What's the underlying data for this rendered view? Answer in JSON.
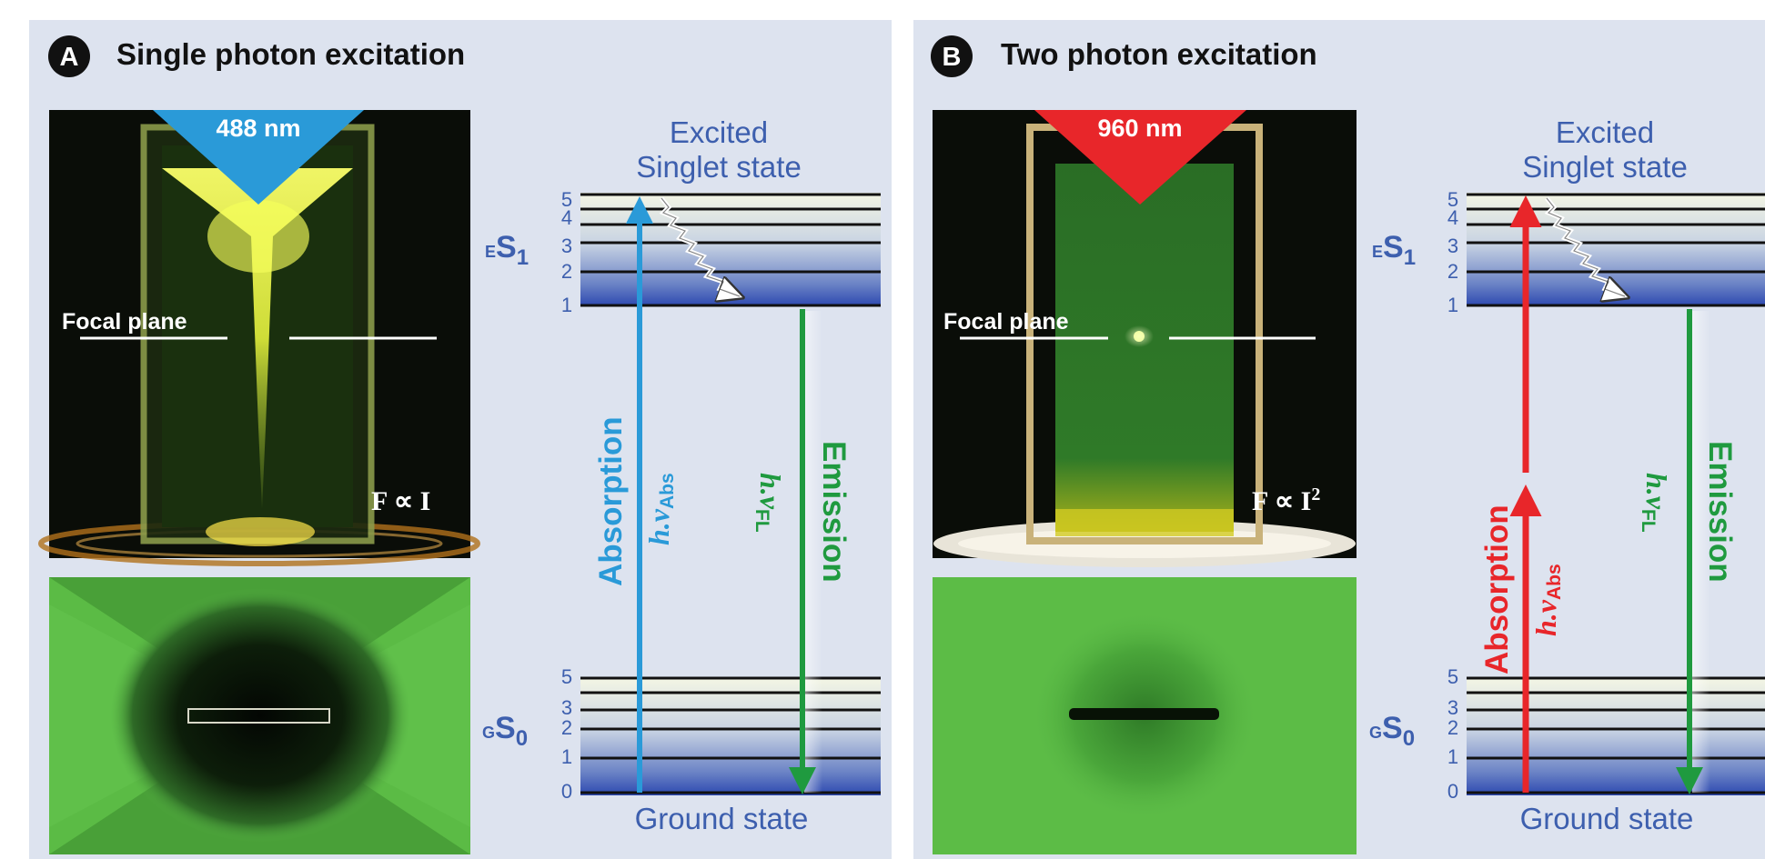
{
  "panel_a": {
    "badge": "A",
    "title": "Single photon excitation",
    "wavelength": "488 nm",
    "focal_plane": "Focal plane",
    "relation_base": "F ∝ I",
    "relation_exp": "",
    "excited_line1": "Excited",
    "excited_line2": "Singlet state",
    "ground_state": "Ground state",
    "s1_prefix": "E",
    "s1_main": "S",
    "s1_sub": "1",
    "s0_prefix": "G",
    "s0_main": "S",
    "s0_sub": "0",
    "excited_levels": [
      "5",
      "4",
      "3",
      "2",
      "1"
    ],
    "ground_levels": [
      "5",
      "3",
      "2",
      "1",
      "0"
    ],
    "absorption": "Absorption",
    "emission": "Emission",
    "hv_abs_main": "h.ν",
    "hv_abs_sub": "Abs",
    "hv_fl_main": "h.ν",
    "hv_fl_sub": "FL",
    "colors": {
      "excitation": "#2a9ad8",
      "emission": "#1f9a3f"
    }
  },
  "panel_b": {
    "badge": "B",
    "title": "Two photon excitation",
    "wavelength": "960 nm",
    "focal_plane": "Focal plane",
    "relation_base": "F ∝ I",
    "relation_exp": "2",
    "excited_line1": "Excited",
    "excited_line2": "Singlet state",
    "ground_state": "Ground state",
    "s1_prefix": "E",
    "s1_main": "S",
    "s1_sub": "1",
    "s0_prefix": "G",
    "s0_main": "S",
    "s0_sub": "0",
    "excited_levels": [
      "5",
      "4",
      "3",
      "2",
      "1"
    ],
    "ground_levels": [
      "5",
      "3",
      "2",
      "1",
      "0"
    ],
    "absorption": "Absorption",
    "emission": "Emission",
    "hv_abs_main": "h.ν",
    "hv_abs_sub": "Abs",
    "hv_fl_main": "h.ν",
    "hv_fl_sub": "FL",
    "colors": {
      "excitation": "#e8262a",
      "emission": "#1f9a3f"
    }
  },
  "colors": {
    "panel_bg": "#dde3ef",
    "label_blue": "#3d5fae",
    "focal_green_light": "#63c24c",
    "focal_green_dark": "#0b1a08"
  }
}
